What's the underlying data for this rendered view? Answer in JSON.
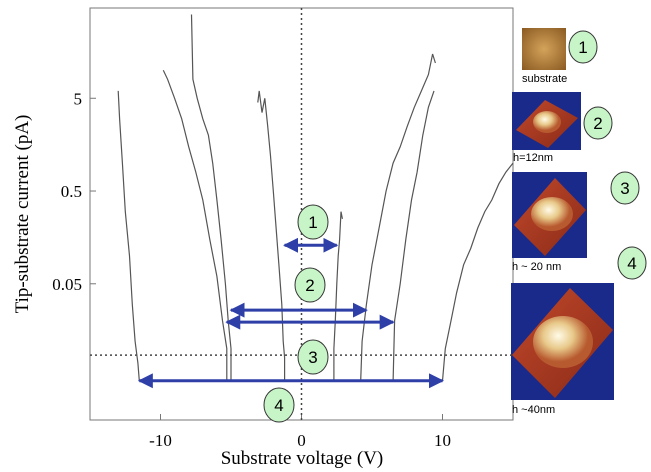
{
  "chart_data": {
    "type": "line",
    "x_label": "Substrate voltage (V)",
    "y_label": "Tip-substrate current (pA)",
    "log_y": true,
    "xlim": [
      -15,
      15
    ],
    "ylim": [
      0.0017,
      47
    ],
    "xticks": [
      -10,
      0,
      10
    ],
    "yticks": [
      0.05,
      0.5,
      5
    ],
    "series": [
      {
        "color": "#555555",
        "x": [
          -3.1,
          -3.0,
          -2.8,
          -2.6,
          -2.4,
          -2.2,
          -2.0,
          -1.8,
          -1.6,
          -1.4,
          -1.3,
          -1.2,
          -1.2,
          null,
          2.3,
          2.3,
          2.4,
          2.5,
          2.6,
          2.7,
          2.8,
          2.9
        ],
        "values": [
          4.5,
          6,
          3.5,
          5,
          2.5,
          1.2,
          0.5,
          0.2,
          0.08,
          0.03,
          0.012,
          0.008,
          0.0045,
          null,
          0.0045,
          0.01,
          0.02,
          0.05,
          0.1,
          0.15,
          0.3,
          0.25
        ]
      },
      {
        "color": "#555555",
        "x": [
          -7.8,
          -7.7,
          -7.4,
          -7.0,
          -6.6,
          -6.3,
          -6.0,
          -5.7,
          -5.4,
          -5.2,
          -5.0,
          -5.0,
          null,
          4.2,
          4.3,
          4.6,
          5.0,
          5.5,
          6.0,
          6.5,
          7.0,
          7.5,
          8.0,
          8.5,
          9.0,
          9.3,
          9.5
        ],
        "values": [
          40,
          8,
          5,
          3,
          2,
          1,
          0.4,
          0.15,
          0.05,
          0.02,
          0.01,
          0.0045,
          null,
          0.0045,
          0.012,
          0.03,
          0.08,
          0.2,
          0.5,
          1,
          1.5,
          2.5,
          4,
          6,
          9,
          15,
          12
        ]
      },
      {
        "color": "#555555",
        "x": [
          -9.8,
          -9.5,
          -9,
          -8.5,
          -8,
          -7.5,
          -7,
          -6.5,
          -6,
          -5.6,
          -5.3,
          -5.3,
          null,
          6.5,
          6.6,
          7,
          7.4,
          7.8,
          8.2,
          8.6,
          9,
          9.4
        ],
        "values": [
          10,
          8,
          5,
          3,
          1.5,
          0.8,
          0.4,
          0.15,
          0.06,
          0.02,
          0.01,
          0.0045,
          null,
          0.0045,
          0.02,
          0.05,
          0.15,
          0.4,
          0.8,
          2,
          4,
          6
        ]
      },
      {
        "color": "#555555",
        "x": [
          -13,
          -12.9,
          -12.7,
          -12.5,
          -12.2,
          -12,
          -11.8,
          -11.6,
          -11.5,
          null,
          10,
          10.2,
          10.6,
          11,
          11.5,
          12,
          12.5,
          13,
          13.5,
          14,
          14.5,
          15
        ],
        "values": [
          6,
          3,
          1,
          0.3,
          0.1,
          0.03,
          0.012,
          0.007,
          0.0045,
          null,
          0.0045,
          0.01,
          0.02,
          0.04,
          0.08,
          0.12,
          0.2,
          0.3,
          0.4,
          0.6,
          0.8,
          1
        ]
      }
    ],
    "threshold": 0.0085,
    "arrows": [
      {
        "label": "1",
        "x": [
          -1.2,
          2.5
        ],
        "y": 0.13
      },
      {
        "label": "2",
        "x": [
          -5.0,
          4.6
        ],
        "y": 0.026
      },
      {
        "label": "3",
        "x": [
          -5.3,
          6.5
        ],
        "y": 0.0193
      },
      {
        "label": "4",
        "x": [
          -11.5,
          10
        ],
        "y": 0.0045
      }
    ]
  },
  "insets": [
    {
      "label": "1",
      "caption": "substrate"
    },
    {
      "label": "2",
      "caption": "h=12nm"
    },
    {
      "label": "3",
      "caption": "h ~ 20 nm"
    },
    {
      "label": "4",
      "caption": "h ~40nm"
    }
  ]
}
